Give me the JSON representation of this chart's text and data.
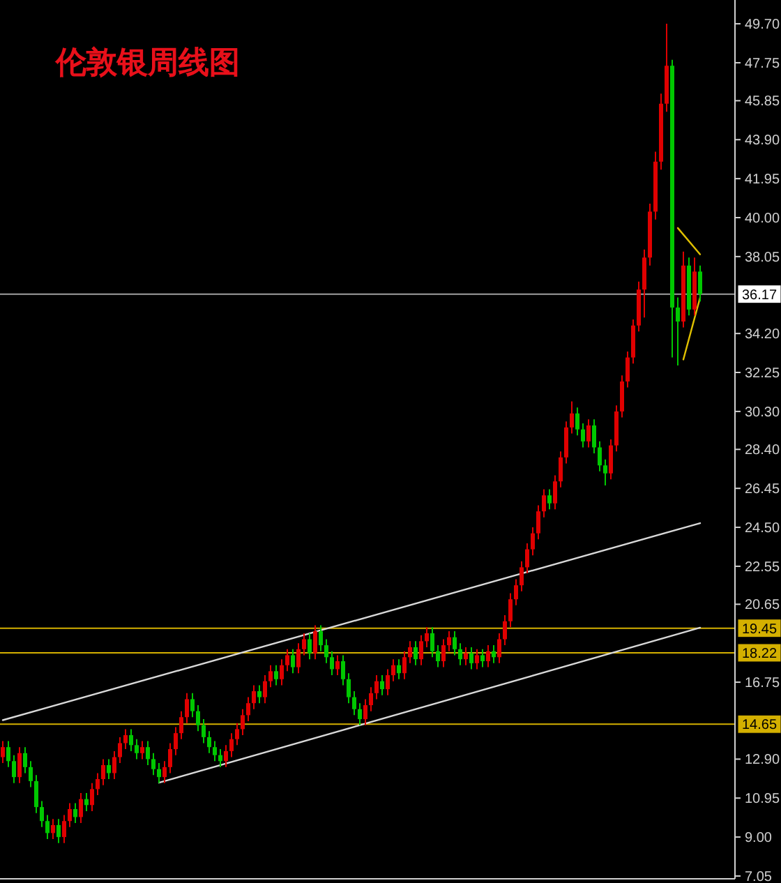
{
  "chart_data": {
    "type": "candlestick",
    "title": "伦敦银周线图",
    "categories": [
      null,
      null,
      null,
      null,
      null,
      null,
      null,
      null,
      null,
      null,
      null,
      null,
      null,
      null,
      null,
      null,
      null,
      null,
      null,
      null,
      null,
      null,
      null,
      null,
      null,
      null,
      null,
      null,
      null,
      null,
      null,
      null,
      null,
      null,
      null,
      null,
      null,
      null,
      null,
      null,
      null,
      null,
      null,
      null,
      null,
      null,
      null,
      null,
      null,
      null,
      null,
      null,
      null,
      null,
      null,
      null,
      null,
      null,
      null,
      null,
      null,
      null,
      null,
      null,
      null,
      null,
      null,
      null,
      null,
      null,
      null,
      null,
      null,
      null,
      null,
      null,
      null,
      null,
      null,
      null,
      null,
      null,
      null,
      null,
      null,
      null,
      null,
      null,
      null,
      null,
      null,
      null,
      null,
      null,
      null,
      null,
      null,
      null,
      null,
      null,
      null,
      null,
      null,
      null,
      null,
      null,
      null,
      null,
      null,
      null,
      null,
      null,
      null,
      null,
      null,
      null,
      null,
      null,
      null,
      null,
      null,
      null,
      null,
      null,
      null,
      null
    ],
    "ohlc": [
      [
        13.0,
        13.8,
        12.7,
        13.5
      ],
      [
        13.5,
        13.8,
        12.5,
        12.8
      ],
      [
        12.8,
        13.1,
        11.7,
        12.0
      ],
      [
        12.0,
        13.5,
        11.7,
        13.2
      ],
      [
        13.2,
        13.5,
        12.2,
        12.5
      ],
      [
        12.5,
        12.8,
        11.5,
        11.8
      ],
      [
        11.8,
        12.1,
        10.2,
        10.5
      ],
      [
        10.5,
        10.8,
        9.5,
        9.8
      ],
      [
        9.8,
        10.1,
        8.9,
        9.2
      ],
      [
        9.2,
        9.9,
        8.9,
        9.6
      ],
      [
        9.6,
        9.9,
        8.7,
        9.0
      ],
      [
        9.0,
        10.1,
        8.7,
        9.8
      ],
      [
        9.8,
        10.7,
        9.5,
        10.4
      ],
      [
        10.4,
        10.7,
        9.7,
        10.0
      ],
      [
        10.0,
        11.2,
        9.7,
        10.9
      ],
      [
        10.9,
        11.2,
        10.3,
        10.6
      ],
      [
        10.6,
        11.7,
        10.3,
        11.4
      ],
      [
        11.4,
        12.2,
        11.1,
        11.9
      ],
      [
        11.9,
        12.9,
        11.6,
        12.6
      ],
      [
        12.6,
        12.9,
        11.9,
        12.2
      ],
      [
        12.2,
        13.3,
        11.9,
        13.0
      ],
      [
        13.0,
        14.0,
        12.7,
        13.7
      ],
      [
        13.7,
        14.4,
        13.4,
        14.1
      ],
      [
        14.1,
        14.4,
        13.3,
        13.6
      ],
      [
        13.6,
        13.9,
        12.9,
        13.2
      ],
      [
        13.2,
        13.8,
        12.9,
        13.5
      ],
      [
        13.5,
        13.8,
        12.6,
        12.9
      ],
      [
        12.9,
        13.2,
        12.1,
        12.4
      ],
      [
        12.4,
        12.7,
        11.7,
        12.0
      ],
      [
        12.0,
        12.8,
        11.7,
        12.5
      ],
      [
        12.5,
        13.7,
        12.2,
        13.4
      ],
      [
        13.4,
        14.5,
        13.1,
        14.2
      ],
      [
        14.2,
        15.3,
        13.9,
        15.0
      ],
      [
        15.0,
        16.2,
        14.7,
        15.9
      ],
      [
        15.9,
        16.2,
        15.0,
        15.3
      ],
      [
        15.3,
        15.6,
        14.3,
        14.6
      ],
      [
        14.6,
        14.9,
        13.7,
        14.0
      ],
      [
        14.0,
        14.3,
        13.2,
        13.5
      ],
      [
        13.5,
        13.8,
        12.8,
        13.1
      ],
      [
        13.1,
        13.4,
        12.5,
        12.8
      ],
      [
        12.8,
        13.6,
        12.5,
        13.3
      ],
      [
        13.3,
        14.2,
        13.0,
        13.9
      ],
      [
        13.9,
        14.7,
        13.6,
        14.4
      ],
      [
        14.4,
        15.4,
        14.1,
        15.1
      ],
      [
        15.1,
        16.0,
        14.8,
        15.7
      ],
      [
        15.7,
        16.6,
        15.4,
        16.3
      ],
      [
        16.3,
        16.6,
        15.7,
        16.0
      ],
      [
        16.0,
        17.1,
        15.7,
        16.8
      ],
      [
        16.8,
        17.6,
        16.5,
        17.3
      ],
      [
        17.3,
        17.6,
        16.6,
        16.9
      ],
      [
        16.9,
        17.9,
        16.6,
        17.6
      ],
      [
        17.6,
        18.4,
        17.3,
        18.1
      ],
      [
        18.1,
        18.4,
        17.2,
        17.5
      ],
      [
        17.5,
        18.7,
        17.2,
        18.4
      ],
      [
        18.4,
        19.2,
        18.1,
        18.9
      ],
      [
        18.9,
        19.2,
        17.9,
        18.2
      ],
      [
        18.2,
        19.6,
        17.9,
        19.3
      ],
      [
        19.3,
        19.6,
        18.3,
        18.6
      ],
      [
        18.6,
        18.9,
        17.7,
        18.0
      ],
      [
        18.0,
        18.3,
        17.1,
        17.4
      ],
      [
        17.4,
        18.1,
        17.1,
        17.8
      ],
      [
        17.8,
        18.1,
        16.6,
        16.9
      ],
      [
        16.9,
        17.2,
        15.7,
        16.0
      ],
      [
        16.0,
        16.3,
        15.1,
        15.4
      ],
      [
        15.4,
        15.7,
        14.6,
        14.9
      ],
      [
        14.9,
        15.9,
        14.6,
        15.6
      ],
      [
        15.6,
        16.5,
        15.3,
        16.2
      ],
      [
        16.2,
        17.1,
        15.9,
        16.8
      ],
      [
        16.8,
        17.1,
        16.1,
        16.4
      ],
      [
        16.4,
        17.4,
        16.1,
        17.1
      ],
      [
        17.1,
        17.9,
        16.8,
        17.6
      ],
      [
        17.6,
        17.9,
        16.9,
        17.2
      ],
      [
        17.2,
        18.3,
        16.9,
        18.0
      ],
      [
        18.0,
        18.8,
        17.7,
        18.5
      ],
      [
        18.5,
        18.8,
        17.6,
        17.9
      ],
      [
        17.9,
        19.1,
        17.6,
        18.8
      ],
      [
        18.8,
        19.5,
        18.5,
        19.2
      ],
      [
        19.2,
        19.5,
        18.0,
        18.3
      ],
      [
        18.3,
        18.6,
        17.5,
        17.8
      ],
      [
        17.8,
        18.9,
        17.5,
        18.6
      ],
      [
        18.6,
        19.3,
        18.3,
        19.0
      ],
      [
        19.0,
        19.3,
        18.1,
        18.4
      ],
      [
        18.4,
        18.7,
        17.6,
        17.9
      ],
      [
        17.9,
        18.5,
        17.6,
        18.2
      ],
      [
        18.2,
        18.5,
        17.4,
        17.7
      ],
      [
        17.7,
        18.4,
        17.4,
        18.1
      ],
      [
        18.1,
        18.4,
        17.5,
        17.8
      ],
      [
        17.8,
        18.6,
        17.5,
        18.3
      ],
      [
        18.3,
        18.6,
        17.7,
        18.0
      ],
      [
        18.0,
        19.2,
        17.7,
        18.9
      ],
      [
        18.9,
        20.1,
        18.6,
        19.8
      ],
      [
        19.8,
        21.2,
        19.5,
        20.9
      ],
      [
        20.9,
        21.9,
        20.6,
        21.6
      ],
      [
        21.6,
        22.8,
        21.3,
        22.5
      ],
      [
        22.5,
        23.7,
        22.2,
        23.4
      ],
      [
        23.4,
        24.5,
        23.1,
        24.2
      ],
      [
        24.2,
        25.6,
        23.9,
        25.3
      ],
      [
        25.3,
        26.4,
        25.0,
        26.1
      ],
      [
        26.1,
        26.4,
        25.4,
        25.7
      ],
      [
        25.7,
        27.1,
        25.4,
        26.8
      ],
      [
        26.8,
        28.3,
        26.5,
        28.0
      ],
      [
        28.0,
        29.8,
        27.7,
        29.5
      ],
      [
        29.5,
        30.8,
        29.2,
        30.2
      ],
      [
        30.2,
        30.5,
        29.1,
        29.4
      ],
      [
        29.4,
        29.7,
        28.5,
        28.8
      ],
      [
        28.8,
        29.9,
        28.5,
        29.6
      ],
      [
        29.6,
        29.9,
        28.2,
        28.5
      ],
      [
        28.5,
        28.8,
        27.3,
        27.6
      ],
      [
        27.6,
        27.9,
        26.6,
        27.2
      ],
      [
        27.2,
        28.9,
        26.9,
        28.6
      ],
      [
        28.6,
        30.6,
        28.3,
        30.3
      ],
      [
        30.3,
        32.1,
        30.0,
        31.8
      ],
      [
        31.8,
        33.3,
        31.5,
        33.0
      ],
      [
        33.0,
        34.9,
        32.7,
        34.6
      ],
      [
        34.6,
        36.8,
        34.3,
        36.4
      ],
      [
        36.4,
        38.4,
        35.0,
        38.0
      ],
      [
        38.0,
        40.7,
        37.6,
        40.3
      ],
      [
        40.3,
        43.3,
        39.9,
        42.8
      ],
      [
        42.8,
        46.2,
        42.4,
        45.7
      ],
      [
        45.7,
        49.7,
        45.3,
        47.6
      ],
      [
        47.6,
        47.9,
        33.0,
        35.5
      ],
      [
        35.5,
        36.0,
        32.6,
        34.8
      ],
      [
        34.8,
        38.3,
        34.5,
        37.6
      ],
      [
        37.6,
        38.0,
        35.1,
        35.4
      ],
      [
        35.4,
        38.0,
        35.1,
        37.3
      ],
      [
        37.3,
        37.6,
        35.8,
        36.17
      ]
    ],
    "colors": [
      "#e00000",
      "#00c800",
      "#00c800",
      "#e00000",
      "#00c800",
      "#00c800",
      "#00c800",
      "#00c800",
      "#00c800",
      "#e00000",
      "#00c800",
      "#e00000",
      "#e00000",
      "#00c800",
      "#e00000",
      "#00c800",
      "#e00000",
      "#e00000",
      "#e00000",
      "#00c800",
      "#e00000",
      "#e00000",
      "#e00000",
      "#00c800",
      "#00c800",
      "#e00000",
      "#00c800",
      "#00c800",
      "#00c800",
      "#e00000",
      "#e00000",
      "#e00000",
      "#e00000",
      "#e00000",
      "#00c800",
      "#00c800",
      "#00c800",
      "#00c800",
      "#00c800",
      "#00c800",
      "#e00000",
      "#e00000",
      "#e00000",
      "#e00000",
      "#e00000",
      "#e00000",
      "#00c800",
      "#e00000",
      "#e00000",
      "#00c800",
      "#e00000",
      "#e00000",
      "#00c800",
      "#e00000",
      "#e00000",
      "#00c800",
      "#e00000",
      "#00c800",
      "#00c800",
      "#00c800",
      "#e00000",
      "#00c800",
      "#00c800",
      "#00c800",
      "#00c800",
      "#e00000",
      "#e00000",
      "#e00000",
      "#00c800",
      "#e00000",
      "#e00000",
      "#00c800",
      "#e00000",
      "#e00000",
      "#00c800",
      "#e00000",
      "#e00000",
      "#00c800",
      "#00c800",
      "#e00000",
      "#e00000",
      "#00c800",
      "#00c800",
      "#e00000",
      "#00c800",
      "#e00000",
      "#00c800",
      "#e00000",
      "#00c800",
      "#e00000",
      "#e00000",
      "#e00000",
      "#e00000",
      "#e00000",
      "#e00000",
      "#e00000",
      "#e00000",
      "#e00000",
      "#00c800",
      "#e00000",
      "#e00000",
      "#e00000",
      "#e00000",
      "#00c800",
      "#00c800",
      "#e00000",
      "#00c800",
      "#00c800",
      "#00c800",
      "#e00000",
      "#e00000",
      "#e00000",
      "#e00000",
      "#e00000",
      "#e00000",
      "#e00000",
      "#e00000",
      "#e00000",
      "#e00000",
      "#e00000",
      "#00c800",
      "#00c800",
      "#e00000",
      "#00c800",
      "#e00000",
      "#00c800"
    ],
    "series": [
      {
        "type": "line",
        "color": "#d8d8d8",
        "values": [
          14.85,
          null,
          null,
          null,
          null,
          null,
          null,
          null,
          null,
          null,
          null,
          null,
          null,
          null,
          null,
          null,
          null,
          null,
          null,
          null,
          null,
          null,
          null,
          null,
          null,
          null,
          null,
          null,
          null,
          null,
          null,
          null,
          null,
          null,
          null,
          null,
          null,
          null,
          null,
          null,
          null,
          null,
          null,
          null,
          null,
          null,
          null,
          null,
          null,
          null,
          null,
          null,
          null,
          null,
          null,
          null,
          null,
          null,
          null,
          null,
          null,
          null,
          null,
          null,
          null,
          null,
          null,
          null,
          null,
          null,
          null,
          null,
          null,
          null,
          null,
          null,
          null,
          null,
          null,
          null,
          null,
          null,
          null,
          null,
          null,
          null,
          null,
          null,
          null,
          null,
          null,
          null,
          null,
          null,
          null,
          null,
          null,
          null,
          null,
          null,
          null,
          null,
          null,
          null,
          null,
          null,
          null,
          null,
          null,
          null,
          null,
          null,
          null,
          null,
          null,
          null,
          null,
          null,
          null,
          null,
          null,
          null,
          null,
          null,
          null,
          24.71
        ]
      },
      {
        "type": "line",
        "color": "#d8d8d8",
        "values": [
          null,
          null,
          null,
          null,
          null,
          null,
          null,
          null,
          null,
          null,
          null,
          null,
          null,
          null,
          null,
          null,
          null,
          null,
          null,
          null,
          null,
          null,
          null,
          null,
          null,
          null,
          null,
          null,
          11.72,
          null,
          null,
          null,
          null,
          null,
          null,
          null,
          null,
          null,
          null,
          null,
          null,
          null,
          null,
          null,
          null,
          null,
          null,
          null,
          null,
          null,
          null,
          null,
          null,
          null,
          null,
          null,
          null,
          null,
          null,
          null,
          null,
          null,
          null,
          null,
          null,
          null,
          null,
          null,
          null,
          null,
          null,
          null,
          null,
          null,
          null,
          null,
          null,
          null,
          null,
          null,
          null,
          null,
          null,
          null,
          null,
          null,
          null,
          null,
          null,
          null,
          null,
          null,
          null,
          null,
          null,
          null,
          null,
          null,
          null,
          null,
          null,
          null,
          null,
          null,
          null,
          null,
          null,
          null,
          null,
          null,
          null,
          null,
          null,
          null,
          null,
          null,
          null,
          null,
          null,
          null,
          null,
          null,
          null,
          null,
          null,
          19.48
        ]
      },
      {
        "type": "line",
        "color": "#e0c000",
        "values": [
          null,
          null,
          null,
          null,
          null,
          null,
          null,
          null,
          null,
          null,
          null,
          null,
          null,
          null,
          null,
          null,
          null,
          null,
          null,
          null,
          null,
          null,
          null,
          null,
          null,
          null,
          null,
          null,
          null,
          null,
          null,
          null,
          null,
          null,
          null,
          null,
          null,
          null,
          null,
          null,
          null,
          null,
          null,
          null,
          null,
          null,
          null,
          null,
          null,
          null,
          null,
          null,
          null,
          null,
          null,
          null,
          null,
          null,
          null,
          null,
          null,
          null,
          null,
          null,
          null,
          null,
          null,
          null,
          null,
          null,
          null,
          null,
          null,
          null,
          null,
          null,
          null,
          null,
          null,
          null,
          null,
          null,
          null,
          null,
          null,
          null,
          null,
          null,
          null,
          null,
          null,
          null,
          null,
          null,
          null,
          null,
          null,
          null,
          null,
          null,
          null,
          null,
          null,
          null,
          null,
          null,
          null,
          null,
          null,
          null,
          null,
          null,
          null,
          null,
          null,
          null,
          null,
          null,
          null,
          null,
          null,
          39.48,
          null,
          null,
          null,
          38.16
        ]
      },
      {
        "type": "line",
        "color": "#e0c000",
        "values": [
          null,
          null,
          null,
          null,
          null,
          null,
          null,
          null,
          null,
          null,
          null,
          null,
          null,
          null,
          null,
          null,
          null,
          null,
          null,
          null,
          null,
          null,
          null,
          null,
          null,
          null,
          null,
          null,
          null,
          null,
          null,
          null,
          null,
          null,
          null,
          null,
          null,
          null,
          null,
          null,
          null,
          null,
          null,
          null,
          null,
          null,
          null,
          null,
          null,
          null,
          null,
          null,
          null,
          null,
          null,
          null,
          null,
          null,
          null,
          null,
          null,
          null,
          null,
          null,
          null,
          null,
          null,
          null,
          null,
          null,
          null,
          null,
          null,
          null,
          null,
          null,
          null,
          null,
          null,
          null,
          null,
          null,
          null,
          null,
          null,
          null,
          null,
          null,
          null,
          null,
          null,
          null,
          null,
          null,
          null,
          null,
          null,
          null,
          null,
          null,
          null,
          null,
          null,
          null,
          null,
          null,
          null,
          null,
          null,
          null,
          null,
          null,
          null,
          null,
          null,
          null,
          null,
          null,
          null,
          null,
          null,
          null,
          32.9,
          null,
          null,
          36.0
        ]
      }
    ],
    "ref_lines": [
      {
        "axis": "y",
        "value": 36.17,
        "label": "36.17",
        "color": "#a0a0a0"
      },
      {
        "axis": "y",
        "value": 19.45,
        "label": "19.45",
        "color": "#d4b000"
      },
      {
        "axis": "y",
        "value": 18.22,
        "label": "18.22",
        "color": "#d4b000"
      },
      {
        "axis": "y",
        "value": 14.65,
        "label": "14.65",
        "color": "#d4b000"
      }
    ],
    "ylim": [
      6.91,
      50.89
    ],
    "yticks": [
      {
        "value": 49.7,
        "label": "49.70"
      },
      {
        "value": 47.75,
        "label": "47.75"
      },
      {
        "value": 45.85,
        "label": "45.85"
      },
      {
        "value": 43.9,
        "label": "43.90"
      },
      {
        "value": 41.95,
        "label": "41.95"
      },
      {
        "value": 40,
        "label": "40.00"
      },
      {
        "value": 38.05,
        "label": "38.05"
      },
      {
        "value": 34.2,
        "label": "34.20"
      },
      {
        "value": 32.25,
        "label": "32.25"
      },
      {
        "value": 30.3,
        "label": "30.30"
      },
      {
        "value": 28.4,
        "label": "28.40"
      },
      {
        "value": 26.45,
        "label": "26.45"
      },
      {
        "value": 24.5,
        "label": "24.50"
      },
      {
        "value": 22.55,
        "label": "22.55"
      },
      {
        "value": 20.65,
        "label": "20.65"
      },
      {
        "value": 16.75,
        "label": "16.75"
      },
      {
        "value": 12.9,
        "label": "12.90"
      },
      {
        "value": 10.95,
        "label": "10.95"
      },
      {
        "value": 9,
        "label": "9.00"
      },
      {
        "value": 7.05,
        "label": "7.05"
      }
    ],
    "tick_labels": "y"
  }
}
